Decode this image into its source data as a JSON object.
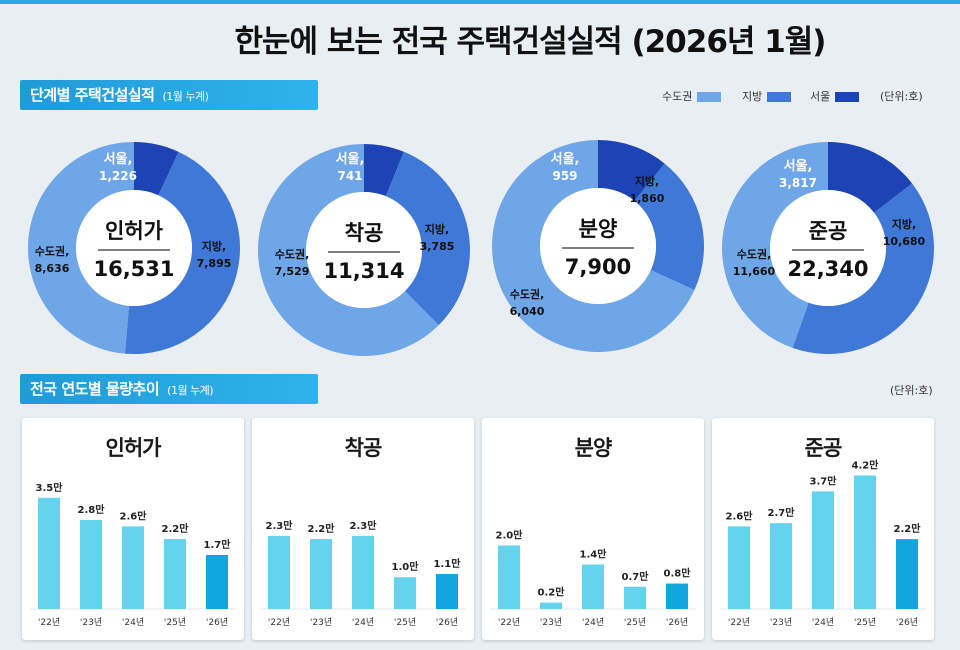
{
  "title": "한눈에 보는 전국 주택건설실적 (2026년 1월)",
  "sections": {
    "stage": {
      "title": "단계별 주택건설실적",
      "sub": "(1월 누계)"
    },
    "trend": {
      "title": "전국 연도별 물량추이",
      "sub": "(1월 누계)"
    }
  },
  "legend": [
    {
      "label": "수도권",
      "color": "#6fa6e8"
    },
    {
      "label": "지방",
      "color": "#3f78d6"
    },
    {
      "label": "서울",
      "color": "#1d44b4"
    }
  ],
  "unit_label": "(단위:호)",
  "chart_data": [
    {
      "type": "pie",
      "center_label": "인허가",
      "total": "16,531",
      "slices": [
        {
          "region": "수도권",
          "label": "수도권,",
          "value_text": "8,636",
          "value": 8636,
          "color": "#6fa6e8"
        },
        {
          "region": "서울",
          "label": "서울,",
          "value_text": "1,226",
          "value": 1226,
          "color": "#1d44b4"
        },
        {
          "region": "지방",
          "label": "지방,",
          "value_text": "7,895",
          "value": 7895,
          "color": "#3f78d6"
        }
      ]
    },
    {
      "type": "pie",
      "center_label": "착공",
      "total": "11,314",
      "slices": [
        {
          "region": "수도권",
          "label": "수도권,",
          "value_text": "7,529",
          "value": 7529,
          "color": "#6fa6e8"
        },
        {
          "region": "서울",
          "label": "서울,",
          "value_text": "741",
          "value": 741,
          "color": "#1d44b4"
        },
        {
          "region": "지방",
          "label": "지방,",
          "value_text": "3,785",
          "value": 3785,
          "color": "#3f78d6"
        }
      ]
    },
    {
      "type": "pie",
      "center_label": "분양",
      "total": "7,900",
      "slices": [
        {
          "region": "수도권",
          "label": "수도권,",
          "value_text": "6,040",
          "value": 6040,
          "color": "#6fa6e8"
        },
        {
          "region": "서울",
          "label": "서울,",
          "value_text": "959",
          "value": 959,
          "color": "#1d44b4"
        },
        {
          "region": "지방",
          "label": "지방,",
          "value_text": "1,860",
          "value": 1860,
          "color": "#3f78d6"
        }
      ]
    },
    {
      "type": "pie",
      "center_label": "준공",
      "total": "22,340",
      "slices": [
        {
          "region": "수도권",
          "label": "수도권,",
          "value_text": "11,660",
          "value": 11660,
          "color": "#6fa6e8"
        },
        {
          "region": "서울",
          "label": "서울,",
          "value_text": "3,817",
          "value": 3817,
          "color": "#1d44b4"
        },
        {
          "region": "지방",
          "label": "지방,",
          "value_text": "10,680",
          "value": 10680,
          "color": "#3f78d6"
        }
      ]
    },
    {
      "type": "bar",
      "title": "인허가",
      "categories": [
        "'22년",
        "'23년",
        "'24년",
        "'25년",
        "'26년"
      ],
      "values": [
        3.5,
        2.8,
        2.6,
        2.2,
        1.7
      ],
      "value_labels": [
        "3.5만",
        "2.8만",
        "2.6만",
        "2.2만",
        "1.7만"
      ]
    },
    {
      "type": "bar",
      "title": "착공",
      "categories": [
        "'22년",
        "'23년",
        "'24년",
        "'25년",
        "'26년"
      ],
      "values": [
        2.3,
        2.2,
        2.3,
        1.0,
        1.1
      ],
      "value_labels": [
        "2.3만",
        "2.2만",
        "2.3만",
        "1.0만",
        "1.1만"
      ]
    },
    {
      "type": "bar",
      "title": "분양",
      "categories": [
        "'22년",
        "'23년",
        "'24년",
        "'25년",
        "'26년"
      ],
      "values": [
        2.0,
        0.2,
        1.4,
        0.7,
        0.8
      ],
      "value_labels": [
        "2.0만",
        "0.2만",
        "1.4만",
        "0.7만",
        "0.8만"
      ]
    },
    {
      "type": "bar",
      "title": "준공",
      "categories": [
        "'22년",
        "'23년",
        "'24년",
        "'25년",
        "'26년"
      ],
      "values": [
        2.6,
        2.7,
        3.7,
        4.2,
        2.2
      ],
      "value_labels": [
        "2.6만",
        "2.7만",
        "3.7만",
        "4.2만",
        "2.2만"
      ]
    }
  ],
  "colors": {
    "bar_past": "#63d3ee",
    "bar_current": "#12a6df",
    "accent": "#2aa8e0"
  }
}
